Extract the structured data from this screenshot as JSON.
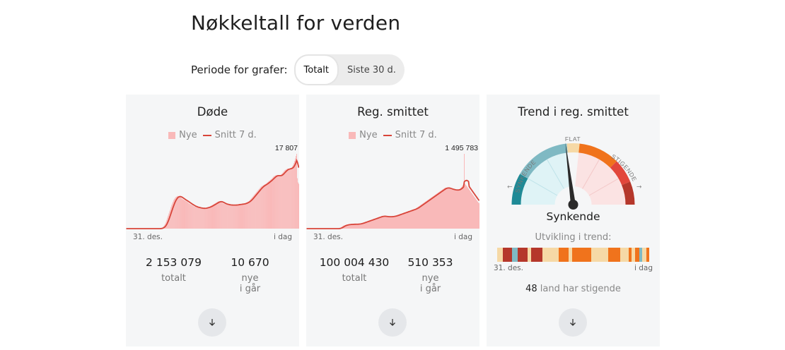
{
  "page": {
    "title": "Nøkkeltall for verden"
  },
  "period": {
    "label": "Periode for grafer:",
    "options": [
      "Totalt",
      "Siste 30 d."
    ],
    "selected": "Totalt"
  },
  "cards": [
    {
      "title": "Døde",
      "legend": {
        "bars": "Nye",
        "line": "Snitt 7 d."
      },
      "peak_label": "17 807",
      "x_start": "31. des.",
      "x_end": "i dag",
      "total_value": "2 153 079",
      "total_label": "totalt",
      "new_value": "10 670",
      "new_label_1": "nye",
      "new_label_2": "i går"
    },
    {
      "title": "Reg. smittet",
      "legend": {
        "bars": "Nye",
        "line": "Snitt 7 d."
      },
      "peak_label": "1 495 783",
      "x_start": "31. des.",
      "x_end": "i dag",
      "total_value": "100 004 430",
      "total_label": "totalt",
      "new_value": "510 353",
      "new_label_1": "nye",
      "new_label_2": "i går"
    },
    {
      "title": "Trend i reg. smittet",
      "gauge": {
        "left_label": "SYNKENDE",
        "middle_label": "FLAT",
        "right_label": "STIGENDE",
        "needle_position": -0.08
      },
      "state": "Synkende",
      "development_label": "Utvikling i trend:",
      "x_start": "31. des.",
      "x_end": "i dag",
      "rising_count": "48",
      "rising_text": "land har stigende"
    }
  ],
  "colors": {
    "bar": "#f9b9b9",
    "line": "#d8453a",
    "card_bg": "#f5f6f7",
    "falling_dark": "#1f8a96",
    "falling_light": "#7fb9c3",
    "flat": "#f6d9a6",
    "rising_orange": "#f0731c",
    "rising_red": "#e2463b",
    "rising_dark": "#b5372b"
  },
  "chart_data": [
    {
      "type": "bar",
      "title": "Døde",
      "series": [
        {
          "name": "Nye",
          "values": [
            0,
            0,
            0,
            0,
            0,
            0,
            0,
            0,
            0,
            0,
            0,
            0,
            0,
            0,
            0,
            0,
            0,
            0,
            0,
            0,
            0,
            0,
            0,
            0,
            0,
            0,
            0,
            0,
            0,
            0,
            0,
            0,
            0,
            0,
            0,
            0,
            0,
            0,
            0,
            0,
            0,
            0,
            0,
            0,
            0,
            0,
            0,
            0,
            20,
            50,
            100,
            180,
            280,
            450,
            650,
            900,
            1200,
            1600,
            2100,
            2600,
            3100,
            3600,
            4100,
            4500,
            5100,
            5600,
            6000,
            6400,
            6800,
            7100,
            7300,
            7500,
            7600,
            7700,
            7800,
            7700,
            7600,
            7500,
            7400,
            7300,
            7100,
            7000,
            6900,
            6800,
            6700,
            6600,
            6500,
            6400,
            6300,
            6100,
            6000,
            5900,
            5800,
            5700,
            5600,
            5500,
            5400,
            5300,
            5200,
            5200,
            5100,
            5100,
            5000,
            5000,
            4950,
            4900,
            4900,
            4850,
            4850,
            4800,
            4800,
            4800,
            4850,
            4900,
            4950,
            5000,
            5050,
            5100,
            5150,
            5200,
            5300,
            5400,
            5500,
            5600,
            5700,
            5800,
            5900,
            6000,
            6100,
            6200,
            6300,
            6400,
            6500,
            6500,
            6500,
            6400,
            6300,
            6200,
            6100,
            6000,
            5900,
            5900,
            5800,
            5800,
            5700,
            5700,
            5700,
            5600,
            5600,
            5600,
            5600,
            5600,
            5600,
            5600,
            5600,
            5600,
            5600,
            5600,
            5700,
            5700,
            5700,
            5800,
            5800,
            5800,
            5800,
            5800,
            5900,
            5900,
            5900,
            6000,
            6000,
            6100,
            6200,
            6300,
            6400,
            6500,
            6600,
            6800,
            7000,
            7200,
            7400,
            7600,
            7800,
            8000,
            8200,
            8400,
            8600,
            8800,
            9000,
            9200,
            9400,
            9600,
            9800,
            10000,
            10100,
            10200,
            10300,
            10400,
            10500,
            10600,
            10700,
            10800,
            11000,
            11100,
            11300,
            11400,
            11500,
            11700,
            11800,
            12000,
            12200,
            12400,
            12500,
            12600,
            12700,
            12700,
            12700,
            12600,
            12500,
            12500,
            12600,
            12700,
            12900,
            13100,
            13300,
            13500,
            13700,
            13900,
            14000,
            14100,
            14200,
            14300,
            14300,
            14200,
            14200,
            14300,
            14400,
            14600,
            14900,
            15200,
            15600,
            16100,
            16700,
            17300,
            17807,
            12000,
            11000,
            10670
          ]
        },
        {
          "name": "Snitt 7 d."
        }
      ],
      "ylim": [
        0,
        17807
      ],
      "x_range": [
        "31. des.",
        "i dag"
      ]
    },
    {
      "type": "bar",
      "title": "Reg. smittet",
      "series": [
        {
          "name": "Nye",
          "values": [
            0,
            0,
            0,
            0,
            0,
            0,
            0,
            0,
            0,
            0,
            0,
            0,
            0,
            0,
            0,
            0,
            0,
            0,
            0,
            0,
            0,
            0,
            0,
            0,
            0,
            0,
            0,
            0,
            0,
            0,
            0,
            0,
            0,
            0,
            0,
            0,
            0,
            0,
            0,
            0,
            0,
            0,
            0,
            0,
            0,
            2000,
            5000,
            10000,
            20000,
            30000,
            40000,
            50000,
            60000,
            65000,
            70000,
            72000,
            75000,
            78000,
            80000,
            82000,
            83000,
            84000,
            85000,
            86000,
            87000,
            88000,
            88000,
            88000,
            88000,
            88000,
            88000,
            89000,
            90000,
            92000,
            95000,
            98000,
            100000,
            105000,
            110000,
            115000,
            120000,
            125000,
            130000,
            135000,
            140000,
            145000,
            150000,
            155000,
            160000,
            165000,
            170000,
            175000,
            180000,
            185000,
            190000,
            195000,
            200000,
            205000,
            210000,
            215000,
            220000,
            225000,
            230000,
            235000,
            240000,
            245000,
            250000,
            250000,
            250000,
            248000,
            246000,
            244000,
            242000,
            240000,
            238000,
            236000,
            235000,
            236000,
            238000,
            240000,
            242000,
            244000,
            246000,
            248000,
            250000,
            255000,
            260000,
            265000,
            270000,
            275000,
            280000,
            285000,
            290000,
            295000,
            300000,
            305000,
            310000,
            315000,
            320000,
            325000,
            330000,
            335000,
            340000,
            345000,
            350000,
            355000,
            360000,
            365000,
            370000,
            375000,
            380000,
            385000,
            390000,
            395000,
            400000,
            410000,
            420000,
            430000,
            440000,
            450000,
            460000,
            470000,
            480000,
            490000,
            500000,
            510000,
            520000,
            530000,
            540000,
            550000,
            560000,
            570000,
            580000,
            590000,
            600000,
            610000,
            620000,
            630000,
            640000,
            650000,
            660000,
            670000,
            680000,
            690000,
            700000,
            710000,
            720000,
            730000,
            740000,
            750000,
            760000,
            770000,
            780000,
            790000,
            800000,
            810000,
            815000,
            820000,
            820000,
            815000,
            810000,
            805000,
            800000,
            795000,
            790000,
            785000,
            780000,
            778000,
            776000,
            774000,
            772000,
            770000,
            770000,
            772000,
            776000,
            780000,
            790000,
            800000,
            815000,
            830000,
            850000,
            870000,
            890000,
            1495783,
            900000,
            880000,
            860000,
            840000,
            820000,
            800000,
            780000,
            760000,
            740000,
            720000,
            700000,
            680000,
            660000,
            640000,
            620000,
            600000,
            580000,
            560000,
            540000,
            520000,
            510353
          ]
        },
        {
          "name": "Snitt 7 d."
        }
      ],
      "ylim": [
        0,
        1495783
      ],
      "x_range": [
        "31. des.",
        "i dag"
      ]
    }
  ],
  "trend_strip": [
    "#f6d9a6",
    "#b5372b",
    "#7fb9c3",
    "#b5372b",
    "#f6d9a6",
    "#b5372b",
    "#f6d9a6",
    "#f6d9a6",
    "#f6d9a6",
    "#f6d9a6",
    "#f0731c",
    "#f6d9a6",
    "#f0731c",
    "#f0731c",
    "#f6d9a6",
    "#f6d9a6",
    "#f6d9a6",
    "#f6d9a6",
    "#f0731c",
    "#f6d9a6",
    "#f6d9a6",
    "#f0731c",
    "#f6d9a6",
    "#f0731c",
    "#7fb9c3",
    "#f6d9a6",
    "#f0731c"
  ]
}
